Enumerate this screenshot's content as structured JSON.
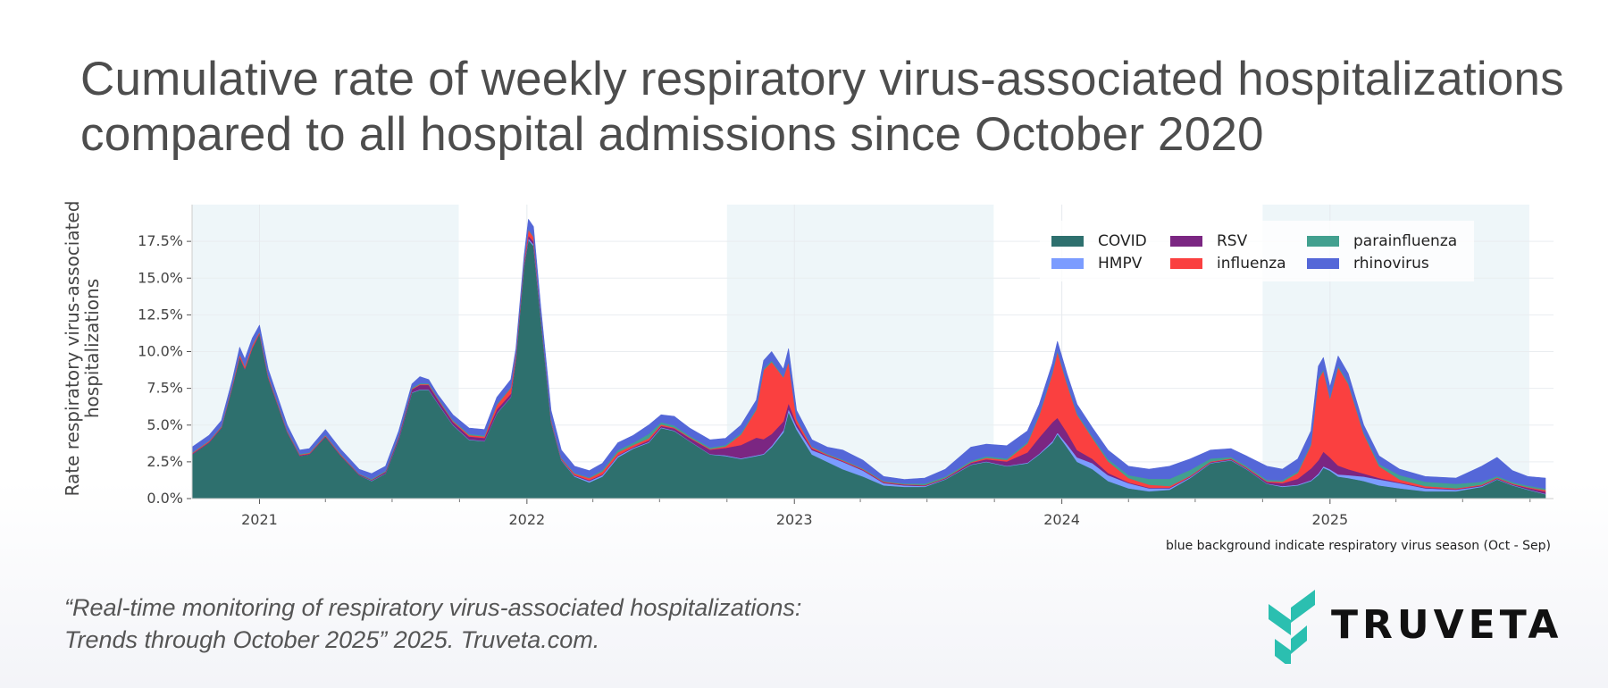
{
  "title_lines": [
    "Cumulative rate of weekly respiratory virus-associated hospitalizations",
    "compared to all hospital admissions since October 2020"
  ],
  "note": "blue background indicate respiratory virus season (Oct - Sep)",
  "citation_lines": [
    "“Real-time monitoring of respiratory virus-associated hospitalizations:",
    "Trends through October 2025” 2025. Truveta.com."
  ],
  "logo": {
    "text": "TRUVETA",
    "color": "#2bbfb0"
  },
  "chart_data": {
    "type": "area",
    "stacked": true,
    "title": "Cumulative rate of weekly respiratory virus-associated hospitalizations compared to all hospital admissions since October 2020",
    "xlabel": "",
    "ylabel_lines": [
      "Rate respiratory virus-associated",
      "hospitalizations"
    ],
    "ylim": [
      0,
      20
    ],
    "xlim": [
      "2020-10-01",
      "2025-11-02"
    ],
    "yticks": [
      0,
      2.5,
      5,
      7.5,
      10,
      12.5,
      15,
      17.5
    ],
    "ytick_labels": [
      "0.0%",
      "2.5%",
      "5.0%",
      "7.5%",
      "10.0%",
      "12.5%",
      "15.0%",
      "17.5%"
    ],
    "xticks": [
      "2021-01-01",
      "2022-01-01",
      "2023-01-01",
      "2024-01-01",
      "2025-01-01"
    ],
    "xtick_labels": [
      "2021",
      "2022",
      "2023",
      "2024",
      "2025"
    ],
    "grid": true,
    "legend_position": "top-right",
    "season_bands": [
      [
        "2020-10-01",
        "2021-09-30"
      ],
      [
        "2022-10-01",
        "2023-09-30"
      ],
      [
        "2024-10-01",
        "2025-09-30"
      ]
    ],
    "season_color": "#eef6f9",
    "x": [
      "2020-10-01",
      "2020-10-24",
      "2020-11-10",
      "2020-11-25",
      "2020-12-05",
      "2020-12-12",
      "2020-12-22",
      "2021-01-01",
      "2021-01-13",
      "2021-02-08",
      "2021-02-25",
      "2021-03-10",
      "2021-04-01",
      "2021-04-22",
      "2021-05-17",
      "2021-06-03",
      "2021-06-22",
      "2021-07-10",
      "2021-07-28",
      "2021-08-08",
      "2021-08-20",
      "2021-09-01",
      "2021-09-22",
      "2021-10-14",
      "2021-11-04",
      "2021-11-21",
      "2021-12-10",
      "2021-12-17",
      "2021-12-28",
      "2022-01-03",
      "2022-01-10",
      "2022-01-20",
      "2022-02-03",
      "2022-02-17",
      "2022-03-07",
      "2022-03-27",
      "2022-04-14",
      "2022-05-05",
      "2022-05-26",
      "2022-06-16",
      "2022-07-03",
      "2022-07-21",
      "2022-08-11",
      "2022-09-08",
      "2022-09-29",
      "2022-10-20",
      "2022-11-10",
      "2022-11-20",
      "2022-12-01",
      "2022-12-17",
      "2022-12-24",
      "2023-01-04",
      "2023-01-25",
      "2023-02-15",
      "2023-03-08",
      "2023-04-05",
      "2023-05-03",
      "2023-05-31",
      "2023-06-28",
      "2023-07-26",
      "2023-08-30",
      "2023-09-20",
      "2023-10-18",
      "2023-11-15",
      "2023-12-01",
      "2023-12-19",
      "2023-12-26",
      "2024-01-08",
      "2024-01-22",
      "2024-02-12",
      "2024-03-04",
      "2024-04-01",
      "2024-04-29",
      "2024-05-27",
      "2024-06-24",
      "2024-07-22",
      "2024-08-19",
      "2024-09-09",
      "2024-10-07",
      "2024-10-28",
      "2024-11-18",
      "2024-12-06",
      "2024-12-16",
      "2024-12-23",
      "2025-01-01",
      "2025-01-12",
      "2025-01-26",
      "2025-02-16",
      "2025-03-09",
      "2025-04-06",
      "2025-05-11",
      "2025-06-22",
      "2025-07-27",
      "2025-08-17",
      "2025-09-07",
      "2025-09-28",
      "2025-10-22"
    ],
    "series": [
      {
        "name": "COVID",
        "color": "#2e706e",
        "values": [
          3.0,
          3.8,
          4.8,
          7.6,
          9.6,
          8.8,
          10.2,
          11.2,
          8.2,
          4.5,
          2.9,
          3.0,
          4.2,
          2.9,
          1.6,
          1.2,
          1.7,
          4.0,
          7.2,
          7.4,
          7.4,
          6.5,
          5.0,
          4.0,
          3.9,
          5.8,
          6.9,
          9.5,
          15.8,
          17.6,
          17.2,
          12.2,
          5.2,
          2.6,
          1.5,
          1.1,
          1.5,
          2.8,
          3.4,
          3.8,
          4.8,
          4.6,
          3.9,
          3.0,
          2.9,
          2.7,
          2.9,
          3.0,
          3.5,
          4.5,
          5.9,
          4.7,
          3.0,
          2.5,
          2.0,
          1.5,
          0.9,
          0.8,
          0.8,
          1.3,
          2.3,
          2.5,
          2.2,
          2.4,
          3.0,
          3.8,
          4.4,
          3.5,
          2.5,
          2.0,
          1.2,
          0.7,
          0.5,
          0.6,
          1.4,
          2.4,
          2.6,
          2.0,
          1.0,
          0.8,
          0.9,
          1.2,
          1.6,
          2.1,
          1.9,
          1.5,
          1.4,
          1.2,
          0.9,
          0.7,
          0.5,
          0.5,
          0.8,
          1.3,
          0.9,
          0.6,
          0.3
        ]
      },
      {
        "name": "HMPV",
        "color": "#7b9cff",
        "values": [
          0,
          0,
          0,
          0,
          0,
          0,
          0,
          0,
          0,
          0,
          0,
          0,
          0,
          0,
          0,
          0.02,
          0.02,
          0.02,
          0.03,
          0.03,
          0.03,
          0.03,
          0.03,
          0.03,
          0.03,
          0.03,
          0.03,
          0.03,
          0.03,
          0.1,
          0.1,
          0.05,
          0.03,
          0.03,
          0.05,
          0.1,
          0.1,
          0.1,
          0.05,
          0.05,
          0.05,
          0.03,
          0.03,
          0.03,
          0.05,
          0.05,
          0.05,
          0.05,
          0.1,
          0.15,
          0.2,
          0.2,
          0.3,
          0.4,
          0.5,
          0.4,
          0.15,
          0.1,
          0.05,
          0.03,
          0.03,
          0.03,
          0.03,
          0.05,
          0.05,
          0.1,
          0.1,
          0.2,
          0.3,
          0.4,
          0.4,
          0.35,
          0.2,
          0.1,
          0.05,
          0.03,
          0.03,
          0.03,
          0.03,
          0.05,
          0.05,
          0.05,
          0.1,
          0.1,
          0.1,
          0.15,
          0.2,
          0.3,
          0.4,
          0.35,
          0.2,
          0.1,
          0.05,
          0.03,
          0.03,
          0.03,
          0.03
        ]
      },
      {
        "name": "RSV",
        "color": "#7b2682",
        "values": [
          0.05,
          0.05,
          0.05,
          0.05,
          0.05,
          0.05,
          0.05,
          0.05,
          0.05,
          0.05,
          0.05,
          0.05,
          0.05,
          0.05,
          0.05,
          0.05,
          0.1,
          0.15,
          0.2,
          0.3,
          0.3,
          0.25,
          0.2,
          0.2,
          0.2,
          0.25,
          0.2,
          0.15,
          0.1,
          0.2,
          0.2,
          0.1,
          0.05,
          0.05,
          0.05,
          0.05,
          0.05,
          0.05,
          0.05,
          0.1,
          0.1,
          0.15,
          0.2,
          0.3,
          0.5,
          0.9,
          1.2,
          1.0,
          0.8,
          0.6,
          0.4,
          0.2,
          0.1,
          0.05,
          0.05,
          0.05,
          0.05,
          0.05,
          0.05,
          0.05,
          0.1,
          0.15,
          0.3,
          0.7,
          1.1,
          1.3,
          1.0,
          0.8,
          0.5,
          0.3,
          0.15,
          0.05,
          0.05,
          0.05,
          0.05,
          0.05,
          0.05,
          0.05,
          0.1,
          0.2,
          0.4,
          0.8,
          0.9,
          1.0,
          0.8,
          0.6,
          0.4,
          0.2,
          0.1,
          0.05,
          0.05,
          0.05,
          0.05,
          0.05,
          0.05,
          0.1,
          0.15
        ]
      },
      {
        "name": "influenza",
        "color": "#fa4040",
        "values": [
          0.05,
          0.05,
          0.05,
          0.1,
          0.15,
          0.15,
          0.15,
          0.1,
          0.1,
          0.05,
          0.05,
          0.05,
          0.05,
          0.05,
          0.02,
          0.02,
          0.02,
          0.05,
          0.05,
          0.05,
          0.05,
          0.05,
          0.05,
          0.1,
          0.1,
          0.3,
          0.4,
          0.2,
          0.2,
          0.4,
          0.3,
          0.1,
          0.1,
          0.05,
          0.1,
          0.15,
          0.2,
          0.2,
          0.15,
          0.15,
          0.1,
          0.05,
          0.05,
          0.05,
          0.1,
          0.7,
          1.9,
          4.7,
          4.9,
          3.0,
          2.8,
          0.3,
          0.1,
          0.05,
          0.05,
          0.05,
          0.05,
          0.03,
          0.03,
          0.03,
          0.05,
          0.1,
          0.1,
          0.6,
          1.5,
          3.3,
          4.5,
          3.3,
          2.4,
          1.4,
          0.8,
          0.3,
          0.2,
          0.1,
          0.05,
          0.05,
          0.05,
          0.05,
          0.05,
          0.1,
          0.4,
          1.6,
          5.5,
          5.5,
          4.0,
          6.7,
          5.8,
          2.7,
          0.8,
          0.2,
          0.1,
          0.05,
          0.05,
          0.05,
          0.05,
          0.05,
          0.1
        ]
      },
      {
        "name": "parainfluenza",
        "color": "#42a08f",
        "values": [
          0.05,
          0.05,
          0.05,
          0.05,
          0.05,
          0.05,
          0.05,
          0.05,
          0.05,
          0.05,
          0.05,
          0.05,
          0.05,
          0.05,
          0.03,
          0.06,
          0.06,
          0.08,
          0.07,
          0.07,
          0.07,
          0.07,
          0.07,
          0.07,
          0.07,
          0.07,
          0.07,
          0.05,
          0.05,
          0.05,
          0.05,
          0.05,
          0.05,
          0.05,
          0.05,
          0.05,
          0.1,
          0.15,
          0.15,
          0.3,
          0.15,
          0.15,
          0.1,
          0.1,
          0.1,
          0.1,
          0.1,
          0.1,
          0.1,
          0.05,
          0.05,
          0.05,
          0.05,
          0.05,
          0.05,
          0.05,
          0.05,
          0.05,
          0.1,
          0.1,
          0.1,
          0.1,
          0.1,
          0.1,
          0.1,
          0.1,
          0.1,
          0.1,
          0.1,
          0.1,
          0.15,
          0.2,
          0.4,
          0.5,
          0.4,
          0.2,
          0.1,
          0.1,
          0.1,
          0.1,
          0.1,
          0.1,
          0.1,
          0.1,
          0.1,
          0.1,
          0.1,
          0.1,
          0.15,
          0.3,
          0.3,
          0.3,
          0.2,
          0.1,
          0.1,
          0.1,
          0.1
        ]
      },
      {
        "name": "rhinovirus",
        "color": "#5467d8",
        "values": [
          0.35,
          0.35,
          0.35,
          0.3,
          0.45,
          0.45,
          0.45,
          0.4,
          0.4,
          0.35,
          0.25,
          0.25,
          0.35,
          0.3,
          0.3,
          0.35,
          0.3,
          0.3,
          0.25,
          0.45,
          0.25,
          0.2,
          0.35,
          0.4,
          0.4,
          0.45,
          0.5,
          0.27,
          0.32,
          0.65,
          0.65,
          0.5,
          0.57,
          0.52,
          0.45,
          0.45,
          0.45,
          0.5,
          0.5,
          0.6,
          0.5,
          0.62,
          0.52,
          0.52,
          0.45,
          0.55,
          0.55,
          0.55,
          0.6,
          0.5,
          0.85,
          0.55,
          0.45,
          0.45,
          0.65,
          0.55,
          0.3,
          0.27,
          0.37,
          0.49,
          0.92,
          0.82,
          0.87,
          0.75,
          0.65,
          0.6,
          0.6,
          0.6,
          0.6,
          0.6,
          0.6,
          0.6,
          0.65,
          0.85,
          0.75,
          0.57,
          0.57,
          0.67,
          0.92,
          0.75,
          0.85,
          0.85,
          0.8,
          0.8,
          0.7,
          0.65,
          0.6,
          0.5,
          0.55,
          0.4,
          0.35,
          0.4,
          1.05,
          1.27,
          0.77,
          0.62,
          0.72
        ]
      }
    ]
  }
}
